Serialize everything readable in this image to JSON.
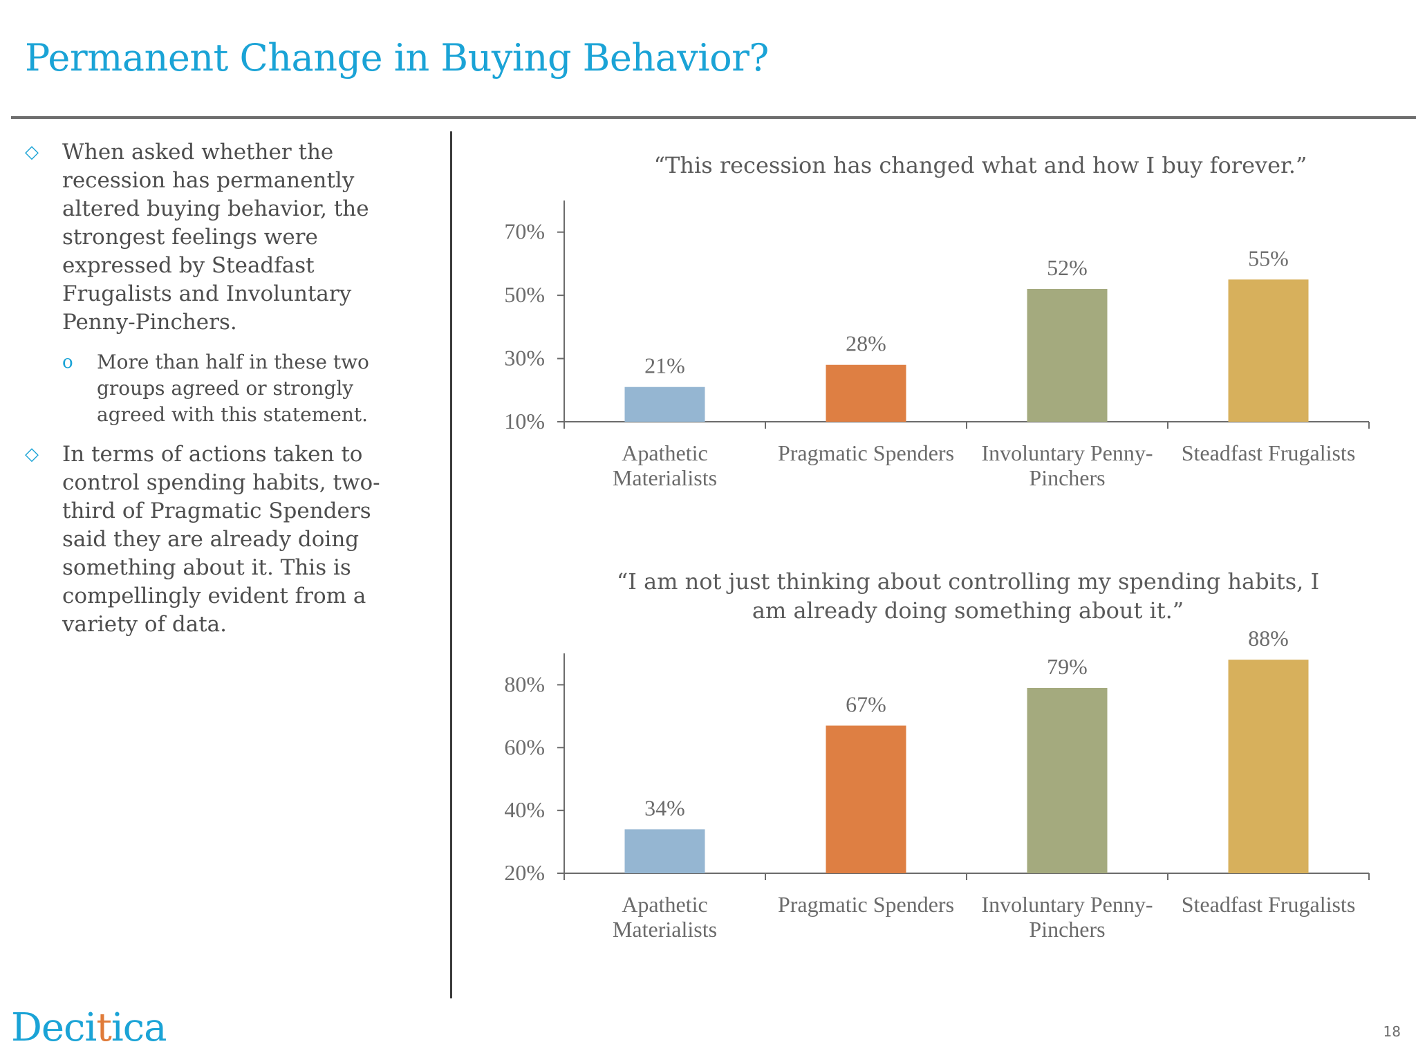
{
  "slide": {
    "title": "Permanent Change in Buying Behavior?",
    "page_number": "18",
    "logo_text_a": "Deci",
    "logo_text_b": "t",
    "logo_text_c": "ica"
  },
  "bullets": [
    {
      "marker": "◇",
      "text": "When asked whether the recession has permanently altered buying behavior, the strongest feelings were expressed by Steadfast Frugalists and Involuntary Penny-Pinchers.",
      "sub": {
        "marker": "o",
        "text": "More than half in these two groups agreed or strongly agreed with this statement."
      }
    },
    {
      "marker": "◇",
      "text": "In terms of actions taken to control spending habits, two-third of Pragmatic Spenders said they are already doing something about it.  This is compellingly evident from a variety of data."
    }
  ],
  "colors": {
    "title": "#1aa3d6",
    "bar_colors": [
      "#95b6d2",
      "#de7f43",
      "#a4aa7e",
      "#d7b05c"
    ],
    "axis": "#6b6b6b"
  },
  "chart_data": [
    {
      "type": "bar",
      "title_lines": [
        "“This recession has changed what and how I buy forever.”"
      ],
      "categories": [
        [
          "Apathetic",
          "Materialists"
        ],
        [
          "Pragmatic Spenders"
        ],
        [
          "Involuntary Penny-",
          "Pinchers"
        ],
        [
          "Steadfast Frugalists"
        ]
      ],
      "values": [
        21,
        28,
        52,
        55
      ],
      "value_labels": [
        "21%",
        "28%",
        "52%",
        "55%"
      ],
      "ylim": [
        10,
        80
      ],
      "yticks": [
        10,
        30,
        50,
        70
      ],
      "ytick_labels": [
        "10%",
        "30%",
        "50%",
        "70%"
      ],
      "grid": false
    },
    {
      "type": "bar",
      "title_lines": [
        "“I  am not just thinking about controlling my spending habits, I",
        "am already doing something about it.”"
      ],
      "categories": [
        [
          "Apathetic",
          "Materialists"
        ],
        [
          "Pragmatic Spenders"
        ],
        [
          "Involuntary Penny-",
          "Pinchers"
        ],
        [
          "Steadfast Frugalists"
        ]
      ],
      "values": [
        34,
        67,
        79,
        88
      ],
      "value_labels": [
        "34%",
        "67%",
        "79%",
        "88%"
      ],
      "ylim": [
        20,
        90
      ],
      "yticks": [
        20,
        40,
        60,
        80
      ],
      "ytick_labels": [
        "20%",
        "40%",
        "60%",
        "80%"
      ],
      "grid": false
    }
  ]
}
